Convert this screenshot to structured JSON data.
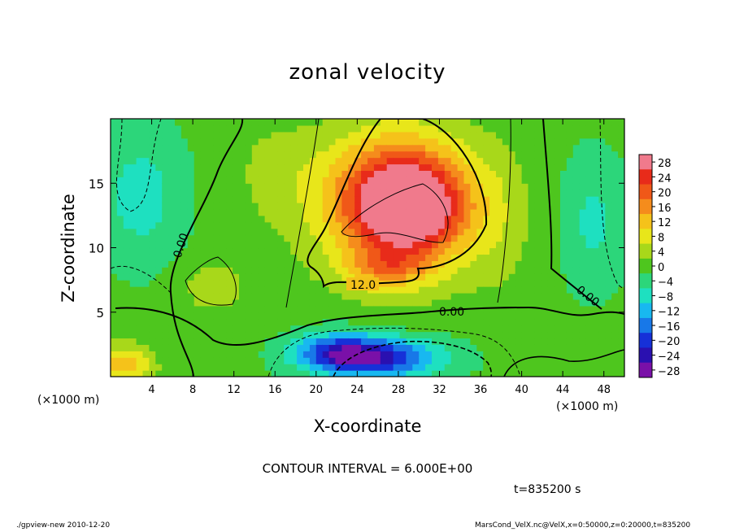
{
  "chart_data": {
    "type": "heatmap",
    "title": "zonal velocity",
    "xlabel": "X-coordinate",
    "ylabel": "Z-coordinate",
    "x_unit_label": "(×1000 m)",
    "y_unit_label": "(×1000 m)",
    "xlim": [
      0,
      50
    ],
    "ylim": [
      0,
      20
    ],
    "x_ticks": [
      4,
      8,
      12,
      16,
      20,
      24,
      28,
      32,
      36,
      40,
      44,
      48
    ],
    "y_ticks": [
      5,
      10,
      15
    ],
    "colorbar": {
      "labels": [
        28,
        24,
        20,
        16,
        12,
        8,
        4,
        0,
        -4,
        -8,
        -12,
        -16,
        -20,
        -24,
        -28
      ],
      "range": [
        -30,
        30
      ],
      "colors": [
        "#f07a8c",
        "#e82b1a",
        "#f05818",
        "#f58c1c",
        "#f5c21a",
        "#e8e61a",
        "#a8d81a",
        "#4ec61e",
        "#2cd67a",
        "#1ee0c0",
        "#18b8f0",
        "#1878e8",
        "#1630d8",
        "#2a10b0",
        "#7a10a8"
      ]
    },
    "contour_interval": 6.0,
    "contour_labels": [
      "0.00",
      "12.0",
      "0.00",
      "0.00"
    ],
    "blobs": [
      {
        "x": 29,
        "z": 13,
        "v": 22,
        "rx": 5,
        "rz": 3
      },
      {
        "x": 28,
        "z": 12,
        "v": 16,
        "rx": 8,
        "rz": 5
      },
      {
        "x": 28,
        "z": 16,
        "v": 14,
        "rx": 7,
        "rz": 4
      },
      {
        "x": 27,
        "z": 8.5,
        "v": 10,
        "rx": 4,
        "rz": 1.5
      },
      {
        "x": 26,
        "z": 1.5,
        "v": -22,
        "rx": 6,
        "rz": 1.5
      },
      {
        "x": 22,
        "z": 2,
        "v": -14,
        "rx": 4,
        "rz": 1.5
      },
      {
        "x": 3,
        "z": 14,
        "v": -7,
        "rx": 4,
        "rz": 5
      },
      {
        "x": 47,
        "z": 12,
        "v": -6,
        "rx": 3,
        "rz": 5
      },
      {
        "x": 10,
        "z": 7,
        "v": 6,
        "rx": 3,
        "rz": 2
      },
      {
        "x": 1,
        "z": 1,
        "v": 14,
        "rx": 3,
        "rz": 1.5
      },
      {
        "x": 16,
        "z": 16,
        "v": 4,
        "rx": 4,
        "rz": 4
      },
      {
        "x": 38,
        "z": 12,
        "v": 3,
        "rx": 3,
        "rz": 6
      }
    ]
  },
  "footer": {
    "contour_interval_text": "CONTOUR INTERVAL = 6.000E+00",
    "time_text": "t=835200 s",
    "program_text": "./gpview-new  2010-12-20",
    "source_text": "MarsCond_VelX.nc@VelX,x=0:50000,z=0:20000,t=835200"
  }
}
